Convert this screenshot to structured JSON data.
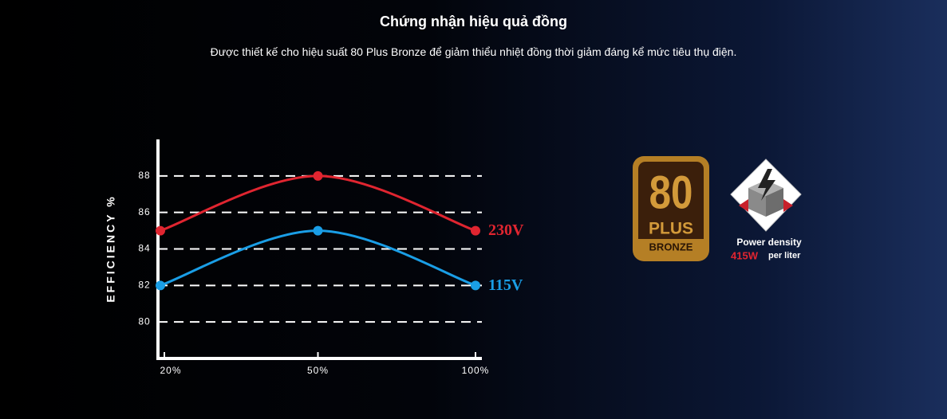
{
  "header": {
    "title": "Chứng nhận hiệu quả đồng",
    "subtitle": "Được thiết kế cho hiệu suất 80 Plus Bronze để giảm thiểu nhiệt đồng thời giảm đáng kể mức tiêu thụ điện."
  },
  "chart_data": {
    "type": "line",
    "y_label": "EFFICIENCY %",
    "categories": [
      "20%",
      "50%",
      "100%"
    ],
    "series": [
      {
        "name": "230V",
        "color": "#e02530",
        "values": [
          85,
          88,
          85
        ]
      },
      {
        "name": "115V",
        "color": "#1a9ee6",
        "values": [
          82,
          85,
          82
        ]
      }
    ],
    "ylim": [
      78,
      90
    ],
    "yticks": [
      80,
      82,
      84,
      86,
      88
    ],
    "grid": true
  },
  "badges": {
    "plus": {
      "number": "80",
      "word": "PLUS",
      "grade": "BRONZE"
    },
    "density": {
      "label": "Power density",
      "value": "415W",
      "unit": "per liter"
    }
  }
}
